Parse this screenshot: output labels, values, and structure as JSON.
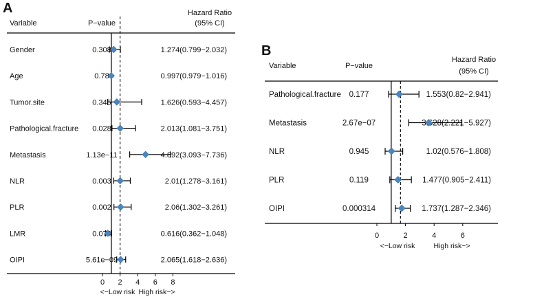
{
  "chart_data": [
    {
      "type": "forest",
      "panel": "A",
      "headers": {
        "variable": "Variable",
        "pvalue": "P−value",
        "hr_line1": "Hazard Ratio",
        "hr_line2": "(95% CI)"
      },
      "rows": [
        {
          "variable": "Gender",
          "p": "0.308",
          "hr": 1.274,
          "lo": 0.799,
          "hi": 2.032,
          "text": "1.274(0.799−2.032)"
        },
        {
          "variable": "Age",
          "p": "0.78",
          "hr": 0.997,
          "lo": 0.979,
          "hi": 1.016,
          "text": "0.997(0.979−1.016)"
        },
        {
          "variable": "Tumor.site",
          "p": "0.345",
          "hr": 1.626,
          "lo": 0.593,
          "hi": 4.457,
          "text": "1.626(0.593−4.457)"
        },
        {
          "variable": "Pathological.fracture",
          "p": "0.028",
          "hr": 2.013,
          "lo": 1.081,
          "hi": 3.751,
          "text": "2.013(1.081−3.751)"
        },
        {
          "variable": "Metastasis",
          "p": "1.13e−11",
          "hr": 4.892,
          "lo": 3.093,
          "hi": 7.736,
          "text": "4.892(3.093−7.736)"
        },
        {
          "variable": "NLR",
          "p": "0.003",
          "hr": 2.01,
          "lo": 1.278,
          "hi": 3.161,
          "text": "2.01(1.278−3.161)"
        },
        {
          "variable": "PLR",
          "p": "0.002",
          "hr": 2.06,
          "lo": 1.302,
          "hi": 3.261,
          "text": "2.06(1.302−3.261)"
        },
        {
          "variable": "LMR",
          "p": "0.074",
          "hr": 0.616,
          "lo": 0.362,
          "hi": 1.048,
          "text": "0.616(0.362−1.048)"
        },
        {
          "variable": "OIPI",
          "p": "5.61e−09",
          "hr": 2.065,
          "lo": 1.618,
          "hi": 2.636,
          "text": "2.065(1.618−2.636)"
        }
      ],
      "xlim": [
        0,
        8
      ],
      "ticks": [
        0,
        2,
        4,
        6,
        8
      ],
      "reference_line": 1,
      "overall_dashed_line": 2.0,
      "low_risk_label": "<−Low risk",
      "high_risk_label": "High risk−>"
    },
    {
      "type": "forest",
      "panel": "B",
      "headers": {
        "variable": "Variable",
        "pvalue": "P−value",
        "hr_line1": "Hazard Ratio",
        "hr_line2": "(95% CI)"
      },
      "rows": [
        {
          "variable": "Pathological.fracture",
          "p": "0.177",
          "hr": 1.553,
          "lo": 0.82,
          "hi": 2.941,
          "text": "1.553(0.82−2.941)"
        },
        {
          "variable": "Metastasis",
          "p": "2.67e−07",
          "hr": 3.628,
          "lo": 2.221,
          "hi": 5.927,
          "text": "3.628(2.221−5.927)"
        },
        {
          "variable": "NLR",
          "p": "0.945",
          "hr": 1.02,
          "lo": 0.576,
          "hi": 1.808,
          "text": "1.02(0.576−1.808)"
        },
        {
          "variable": "PLR",
          "p": "0.119",
          "hr": 1.477,
          "lo": 0.905,
          "hi": 2.411,
          "text": "1.477(0.905−2.411)"
        },
        {
          "variable": "OIPI",
          "p": "0.000314",
          "hr": 1.737,
          "lo": 1.287,
          "hi": 2.346,
          "text": "1.737(1.287−2.346)"
        }
      ],
      "xlim": [
        0,
        6
      ],
      "ticks": [
        0,
        2,
        4,
        6
      ],
      "reference_line": 1,
      "overall_dashed_line": 1.65,
      "low_risk_label": "<−Low risk",
      "high_risk_label": "High risk−>"
    }
  ],
  "style": {
    "marker_color": "#4a86c0",
    "text_color": "#111111",
    "line_color": "#000000"
  }
}
